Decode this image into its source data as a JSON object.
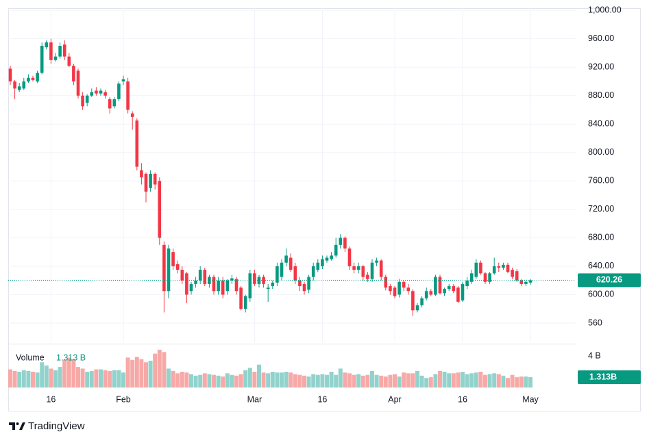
{
  "chart_data": {
    "type": "candlestick",
    "x": [
      "Jan 7",
      "Jan 8",
      "Jan 9",
      "Jan 10",
      "Jan 11",
      "Jan 12",
      "Jan 13",
      "Jan 14",
      "Jan 15",
      "Jan 16",
      "Jan 17",
      "Jan 18",
      "Jan 19",
      "Jan 20",
      "Jan 21",
      "Jan 22",
      "Jan 23",
      "Jan 24",
      "Jan 25",
      "Jan 26",
      "Jan 27",
      "Jan 28",
      "Jan 29",
      "Jan 30",
      "Jan 31",
      "Feb 1",
      "Feb 2",
      "Feb 3",
      "Feb 4",
      "Feb 5",
      "Feb 6",
      "Feb 7",
      "Feb 8",
      "Feb 9",
      "Feb 10",
      "Feb 11",
      "Feb 12",
      "Feb 13",
      "Feb 14",
      "Feb 15",
      "Feb 16",
      "Feb 17",
      "Feb 18",
      "Feb 19",
      "Feb 20",
      "Feb 21",
      "Feb 22",
      "Feb 23",
      "Feb 24",
      "Feb 25",
      "Feb 26",
      "Feb 27",
      "Feb 28",
      "Feb 29",
      "Mar 1",
      "Mar 2",
      "Mar 3",
      "Mar 4",
      "Mar 5",
      "Mar 6",
      "Mar 7",
      "Mar 8",
      "Mar 9",
      "Mar 10",
      "Mar 11",
      "Mar 12",
      "Mar 13",
      "Mar 14",
      "Mar 15",
      "Mar 16",
      "Mar 17",
      "Mar 18",
      "Mar 19",
      "Mar 20",
      "Mar 21",
      "Mar 22",
      "Mar 23",
      "Mar 24",
      "Mar 25",
      "Mar 26",
      "Mar 27",
      "Mar 28",
      "Mar 29",
      "Mar 30",
      "Mar 31",
      "Apr 1",
      "Apr 2",
      "Apr 3",
      "Apr 4",
      "Apr 5",
      "Apr 6",
      "Apr 7",
      "Apr 8",
      "Apr 9",
      "Apr 10",
      "Apr 11",
      "Apr 12",
      "Apr 13",
      "Apr 14",
      "Apr 15",
      "Apr 16",
      "Apr 17",
      "Apr 18",
      "Apr 19",
      "Apr 20",
      "Apr 21",
      "Apr 22",
      "Apr 23",
      "Apr 24",
      "Apr 25",
      "Apr 26",
      "Apr 27",
      "Apr 28",
      "Apr 29",
      "Apr 30",
      "May 1"
    ],
    "open": [
      918,
      900,
      888,
      890,
      900,
      905,
      900,
      912,
      948,
      955,
      930,
      935,
      952,
      935,
      922,
      915,
      880,
      870,
      880,
      887,
      883,
      885,
      875,
      865,
      875,
      900,
      900,
      855,
      845,
      775,
      770,
      750,
      770,
      760,
      670,
      605,
      660,
      643,
      635,
      630,
      605,
      615,
      620,
      635,
      615,
      625,
      605,
      620,
      605,
      620,
      622,
      610,
      580,
      595,
      630,
      615,
      625,
      608,
      612,
      617,
      625,
      645,
      652,
      640,
      620,
      615,
      607,
      625,
      635,
      640,
      648,
      650,
      655,
      670,
      680,
      665,
      640,
      635,
      640,
      628,
      622,
      645,
      648,
      625,
      612,
      610,
      600,
      618,
      610,
      605,
      578,
      585,
      595,
      605,
      600,
      625,
      602,
      608,
      612,
      610,
      592,
      612,
      618,
      625,
      645,
      630,
      618,
      630,
      640,
      638,
      642,
      635,
      633,
      620,
      615,
      617
    ],
    "high": [
      922,
      902,
      898,
      905,
      910,
      908,
      915,
      955,
      958,
      960,
      940,
      955,
      958,
      940,
      925,
      918,
      885,
      882,
      890,
      892,
      890,
      888,
      878,
      878,
      900,
      908,
      905,
      858,
      848,
      785,
      772,
      775,
      772,
      765,
      675,
      670,
      665,
      648,
      640,
      632,
      618,
      625,
      640,
      638,
      628,
      628,
      625,
      625,
      622,
      628,
      625,
      612,
      600,
      635,
      635,
      628,
      628,
      615,
      620,
      645,
      650,
      665,
      658,
      645,
      625,
      618,
      628,
      645,
      650,
      655,
      655,
      660,
      680,
      685,
      682,
      668,
      645,
      645,
      642,
      632,
      650,
      652,
      650,
      628,
      615,
      612,
      622,
      620,
      615,
      608,
      588,
      598,
      610,
      608,
      628,
      628,
      610,
      615,
      615,
      612,
      618,
      625,
      635,
      650,
      648,
      632,
      632,
      652,
      645,
      645,
      645,
      638,
      636,
      622,
      620,
      622
    ],
    "low": [
      895,
      875,
      885,
      888,
      898,
      900,
      898,
      910,
      945,
      925,
      928,
      932,
      930,
      920,
      895,
      876,
      860,
      865,
      878,
      880,
      880,
      876,
      855,
      862,
      872,
      895,
      855,
      832,
      775,
      755,
      730,
      745,
      748,
      670,
      575,
      595,
      635,
      630,
      615,
      588,
      600,
      610,
      615,
      612,
      610,
      600,
      600,
      595,
      600,
      615,
      600,
      578,
      575,
      590,
      612,
      610,
      610,
      590,
      608,
      612,
      620,
      640,
      632,
      615,
      605,
      600,
      602,
      620,
      632,
      636,
      645,
      648,
      652,
      665,
      660,
      635,
      630,
      630,
      620,
      618,
      618,
      640,
      620,
      606,
      600,
      595,
      596,
      605,
      600,
      570,
      575,
      582,
      592,
      598,
      598,
      600,
      598,
      605,
      602,
      588,
      590,
      608,
      615,
      622,
      628,
      615,
      615,
      628,
      632,
      635,
      630,
      622,
      618,
      612,
      612,
      614
    ],
    "close": [
      900,
      890,
      893,
      900,
      905,
      902,
      912,
      950,
      955,
      930,
      935,
      950,
      935,
      922,
      900,
      880,
      865,
      880,
      885,
      883,
      887,
      880,
      862,
      875,
      897,
      903,
      860,
      850,
      780,
      765,
      745,
      770,
      755,
      680,
      605,
      665,
      640,
      635,
      620,
      600,
      615,
      620,
      635,
      615,
      625,
      605,
      620,
      600,
      620,
      623,
      605,
      580,
      598,
      630,
      615,
      625,
      615,
      610,
      617,
      640,
      645,
      655,
      635,
      620,
      612,
      605,
      625,
      640,
      645,
      650,
      652,
      655,
      670,
      680,
      665,
      640,
      635,
      640,
      625,
      622,
      645,
      648,
      625,
      610,
      605,
      598,
      618,
      610,
      605,
      578,
      585,
      595,
      605,
      600,
      625,
      602,
      608,
      612,
      605,
      590,
      615,
      620,
      630,
      645,
      630,
      618,
      630,
      640,
      638,
      642,
      632,
      625,
      620,
      615,
      618,
      620.26
    ],
    "up_color": "#089981",
    "down_color": "#f23645",
    "ylim": [
      533,
      1003
    ],
    "yticks": [
      560,
      {
        "value": 600,
        "label": "600.00"
      },
      {
        "value": 640,
        "label": "640.00"
      },
      {
        "value": 680,
        "label": "680.00"
      },
      {
        "value": 720,
        "label": "720.00"
      },
      {
        "value": 760,
        "label": "760.00"
      },
      {
        "value": 800,
        "label": "800.00"
      },
      {
        "value": 840,
        "label": "840.00"
      },
      {
        "value": 880,
        "label": "880.00"
      },
      {
        "value": 920,
        "label": "920.00"
      },
      {
        "value": 960,
        "label": "960.00"
      },
      {
        "value": 1000,
        "label": "1,000.00"
      }
    ],
    "xticks": [
      {
        "value": "Jan 16",
        "label": "16"
      },
      {
        "value": "Feb 1",
        "label": "Feb"
      },
      {
        "value": "Mar 1",
        "label": "Mar"
      },
      {
        "value": "Mar 16",
        "label": "16"
      },
      {
        "value": "Apr 1",
        "label": "Apr"
      },
      {
        "value": "Apr 16",
        "label": "16"
      },
      {
        "value": "May 1",
        "label": "May"
      }
    ],
    "grid": true,
    "volume": {
      "name": "Volume",
      "up_color": "#92d2cc",
      "down_color": "#f7a9a7",
      "last_label": "1.313 B",
      "last_tag": "1.313B",
      "ylim": [
        0,
        5.48
      ],
      "yticks": [
        {
          "value": 4,
          "label": "4 B"
        }
      ],
      "values": [
        2.3,
        2.1,
        2.0,
        2.2,
        2.1,
        2.0,
        1.9,
        3.2,
        2.8,
        2.4,
        2.2,
        2.6,
        3.5,
        3.8,
        3.6,
        2.6,
        2.4,
        2.0,
        2.1,
        2.3,
        2.3,
        2.2,
        2.1,
        2.2,
        2.2,
        1.9,
        3.8,
        3.5,
        3.9,
        3.6,
        3.2,
        3.4,
        4.3,
        4.8,
        4.5,
        2.4,
        2.1,
        1.8,
        2.0,
        1.9,
        1.7,
        1.5,
        1.6,
        1.8,
        1.7,
        1.6,
        1.5,
        1.4,
        1.8,
        1.6,
        1.5,
        1.7,
        2.2,
        2.5,
        2.0,
        2.9,
        1.9,
        1.8,
        2.0,
        1.9,
        1.9,
        2.0,
        1.9,
        1.7,
        1.6,
        1.5,
        1.4,
        1.7,
        1.6,
        1.7,
        1.6,
        2.0,
        1.6,
        2.4,
        1.9,
        1.8,
        1.6,
        1.7,
        1.5,
        1.6,
        2.1,
        1.6,
        1.5,
        1.4,
        1.6,
        1.7,
        1.4,
        1.9,
        1.8,
        1.8,
        2.1,
        1.5,
        1.2,
        1.3,
        1.7,
        2.1,
        2.0,
        1.8,
        1.8,
        1.9,
        2.0,
        1.7,
        1.8,
        1.9,
        2.0,
        1.6,
        1.7,
        1.8,
        1.7,
        1.5,
        1.2,
        1.6,
        1.3,
        1.4,
        1.4,
        1.313
      ]
    },
    "branding": "TradingView"
  }
}
